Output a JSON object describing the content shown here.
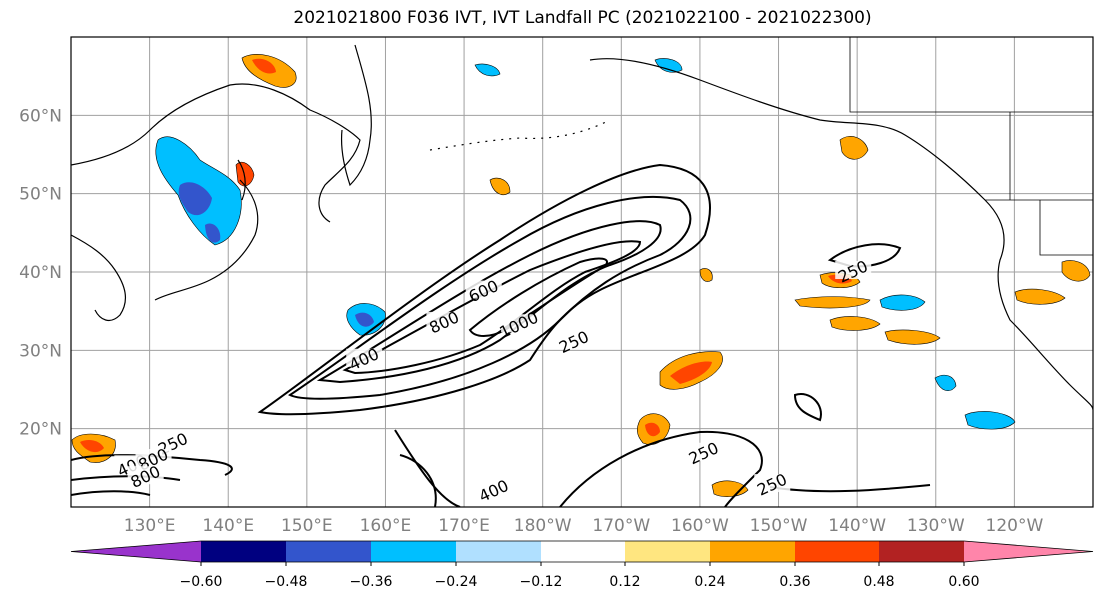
{
  "title": "2021021800 F036 IVT, IVT Landfall PC (2021022100 - 2021022300)",
  "map": {
    "lon_range": [
      120,
      250
    ],
    "lat_range": [
      10,
      70
    ],
    "lat_ticks": [
      {
        "value": 20,
        "label": "20°N"
      },
      {
        "value": 30,
        "label": "30°N"
      },
      {
        "value": 40,
        "label": "40°N"
      },
      {
        "value": 50,
        "label": "50°N"
      },
      {
        "value": 60,
        "label": "60°N"
      }
    ],
    "lon_ticks": [
      {
        "value": 130,
        "label": "130°E"
      },
      {
        "value": 140,
        "label": "140°E"
      },
      {
        "value": 150,
        "label": "150°E"
      },
      {
        "value": 160,
        "label": "160°E"
      },
      {
        "value": 170,
        "label": "170°E"
      },
      {
        "value": 180,
        "label": "180°W"
      },
      {
        "value": 190,
        "label": "170°W"
      },
      {
        "value": 200,
        "label": "160°W"
      },
      {
        "value": 210,
        "label": "150°W"
      },
      {
        "value": 220,
        "label": "140°W"
      },
      {
        "value": 230,
        "label": "130°W"
      },
      {
        "value": 240,
        "label": "120°W"
      }
    ],
    "gridlines": true,
    "contour_labels": [
      {
        "text": "250",
        "lon": 219.5,
        "lat": 40.0
      },
      {
        "text": "600",
        "lon": 172.5,
        "lat": 37.5
      },
      {
        "text": "800",
        "lon": 167.5,
        "lat": 33.5
      },
      {
        "text": "1000",
        "lon": 177.0,
        "lat": 33.2
      },
      {
        "text": "250",
        "lon": 184.0,
        "lat": 31.0
      },
      {
        "text": "400",
        "lon": 157.3,
        "lat": 28.8
      },
      {
        "text": "250",
        "lon": 133.0,
        "lat": 18.0
      },
      {
        "text": "400",
        "lon": 127.8,
        "lat": 15.2
      },
      {
        "text": "800",
        "lon": 130.5,
        "lat": 16.0
      },
      {
        "text": "800",
        "lon": 129.5,
        "lat": 13.8
      },
      {
        "text": "250",
        "lon": 200.5,
        "lat": 16.8
      },
      {
        "text": "250",
        "lon": 209.2,
        "lat": 12.8
      },
      {
        "text": "400",
        "lon": 173.8,
        "lat": 12.0
      }
    ]
  },
  "colorbar": {
    "colors": [
      "#9933cc",
      "#000080",
      "#3355cc",
      "#00bfff",
      "#b0e0ff",
      "#ffffff",
      "#ffe680",
      "#ffa500",
      "#ff4500",
      "#b22222",
      "#ff85aa"
    ],
    "tick_labels": [
      "−0.60",
      "−0.48",
      "−0.36",
      "−0.24",
      "−0.12",
      "0.12",
      "0.24",
      "0.36",
      "0.48",
      "0.60"
    ],
    "extend": "both"
  }
}
